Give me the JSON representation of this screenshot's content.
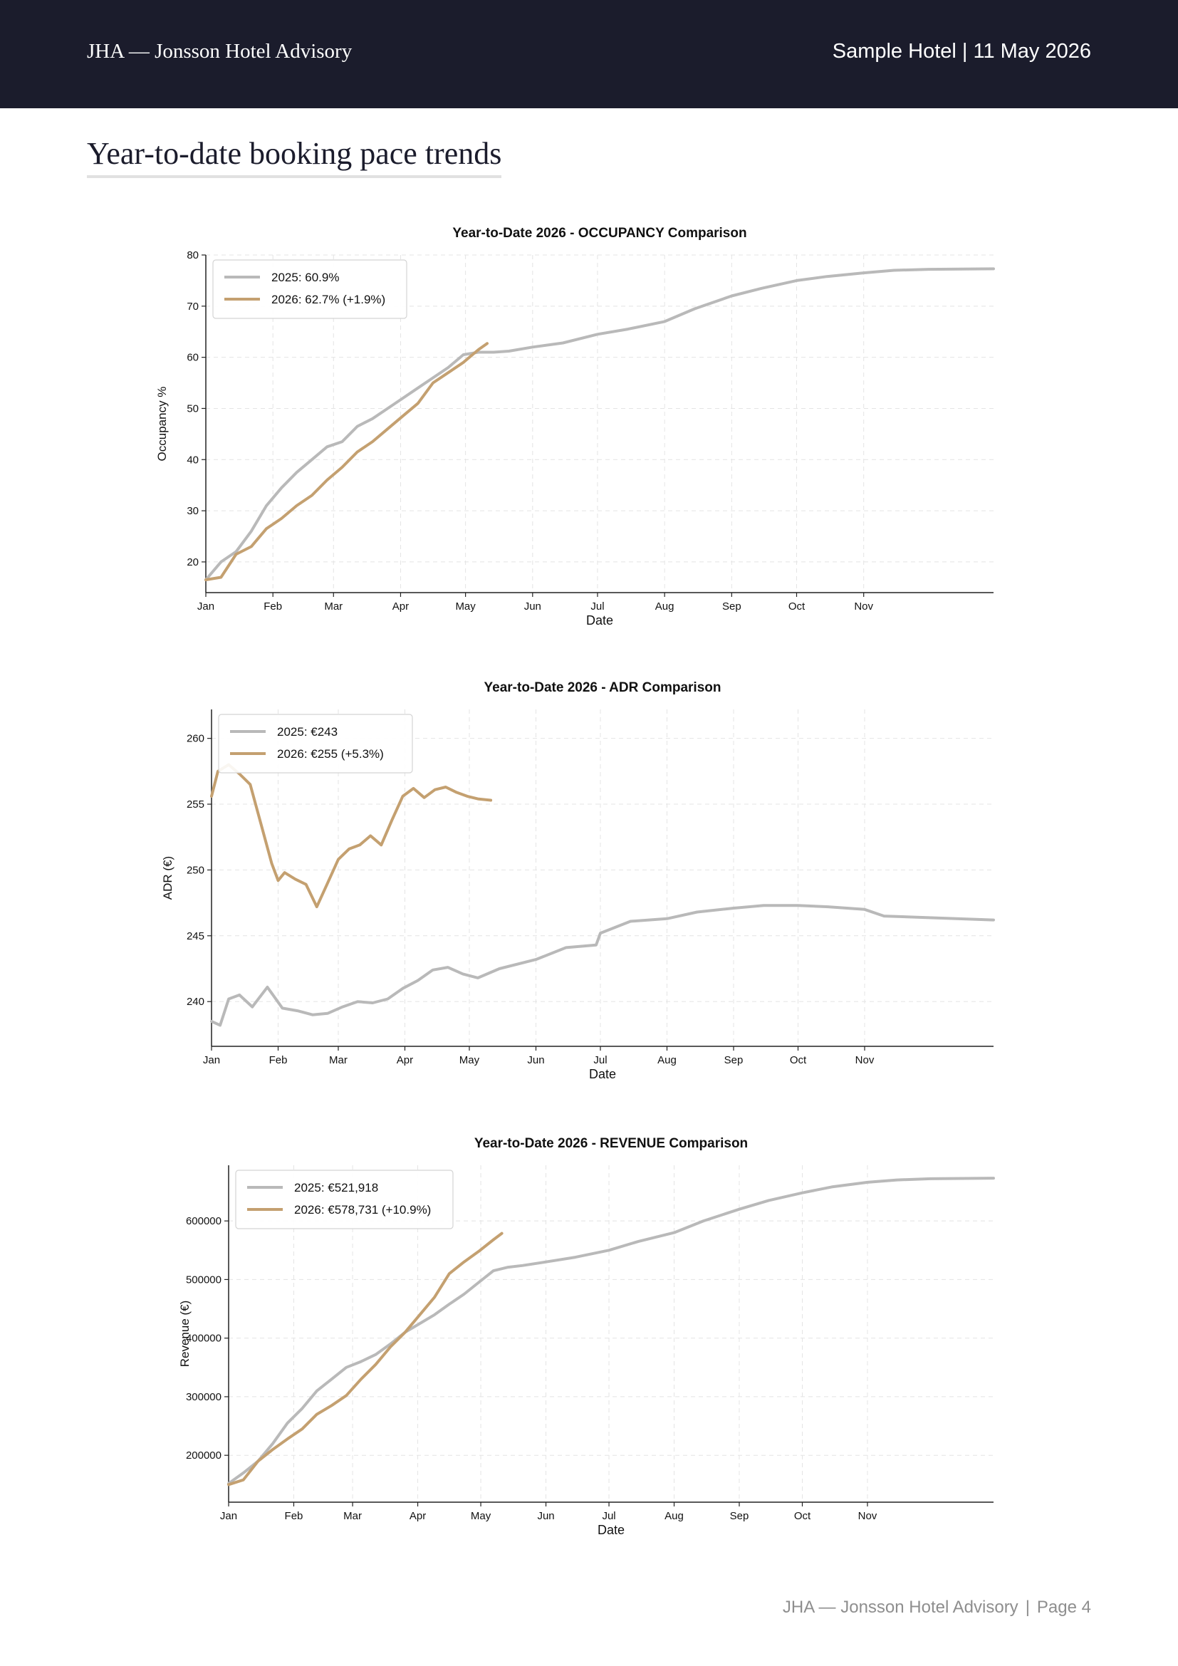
{
  "header": {
    "brand": "JHA — Jonsson Hotel Advisory",
    "hotel_date": "Sample Hotel | 11 May 2026"
  },
  "page": {
    "title": "Year-to-date booking pace trends"
  },
  "footer": {
    "brand": "JHA — Jonsson Hotel Advisory",
    "separator": "|",
    "page": "Page 4"
  },
  "colors": {
    "header_bg": "#1b1c2c",
    "series_2025": "#b9b9b9",
    "series_2026": "#c4a070",
    "grid": "#e4e4e4"
  },
  "chart_data": [
    {
      "type": "line",
      "title": "Year-to-Date 2026 - OCCUPANCY Comparison",
      "xlabel": "Date",
      "ylabel": "Occupancy %",
      "xlim": [
        "2026-01-01",
        "2026-12-31"
      ],
      "ylim": [
        14,
        80
      ],
      "x_ticks": [
        "Jan",
        "Feb",
        "Mar",
        "Apr",
        "May",
        "Jun",
        "Jul",
        "Aug",
        "Sep",
        "Oct",
        "Nov"
      ],
      "y_ticks": [
        20,
        30,
        40,
        50,
        60,
        70,
        80
      ],
      "grid": true,
      "legend": "top-left",
      "series": [
        {
          "name": "2025: 60.9%",
          "color": "#b9b9b9",
          "x": [
            "2026-01-01",
            "2026-01-08",
            "2026-01-15",
            "2026-01-22",
            "2026-01-29",
            "2026-02-05",
            "2026-02-12",
            "2026-02-19",
            "2026-02-26",
            "2026-03-05",
            "2026-03-12",
            "2026-03-19",
            "2026-03-26",
            "2026-04-02",
            "2026-04-09",
            "2026-04-16",
            "2026-04-23",
            "2026-04-30",
            "2026-05-07",
            "2026-05-14",
            "2026-05-21",
            "2026-06-01",
            "2026-06-15",
            "2026-07-01",
            "2026-07-15",
            "2026-08-01",
            "2026-08-15",
            "2026-09-01",
            "2026-09-15",
            "2026-10-01",
            "2026-10-15",
            "2026-11-01",
            "2026-11-15",
            "2026-12-01",
            "2026-12-31"
          ],
          "values": [
            16.5,
            20,
            22,
            26,
            31,
            34.5,
            37.5,
            40,
            42.5,
            43.5,
            46.5,
            48,
            50,
            52,
            54,
            56,
            58,
            60.5,
            61,
            61,
            61.2,
            62,
            62.8,
            64.5,
            65.5,
            67,
            69.5,
            72,
            73.5,
            75,
            75.8,
            76.5,
            77,
            77.2,
            77.3
          ]
        },
        {
          "name": "2026: 62.7% (+1.9%)",
          "color": "#c4a070",
          "x": [
            "2026-01-01",
            "2026-01-08",
            "2026-01-15",
            "2026-01-22",
            "2026-01-29",
            "2026-02-05",
            "2026-02-12",
            "2026-02-19",
            "2026-02-26",
            "2026-03-05",
            "2026-03-12",
            "2026-03-19",
            "2026-03-26",
            "2026-04-02",
            "2026-04-09",
            "2026-04-16",
            "2026-04-23",
            "2026-04-30",
            "2026-05-07",
            "2026-05-11"
          ],
          "values": [
            16.5,
            17,
            21.5,
            23,
            26.5,
            28.5,
            31,
            33,
            36,
            38.5,
            41.5,
            43.5,
            46,
            48.5,
            51,
            55,
            57,
            59,
            61.5,
            62.7
          ]
        }
      ]
    },
    {
      "type": "line",
      "title": "Year-to-Date 2026 - ADR Comparison",
      "xlabel": "Date",
      "ylabel": "ADR (€)",
      "xlim": [
        "2026-01-01",
        "2026-12-31"
      ],
      "ylim": [
        236.6,
        262.2
      ],
      "x_ticks": [
        "Jan",
        "Feb",
        "Mar",
        "Apr",
        "May",
        "Jun",
        "Jul",
        "Aug",
        "Sep",
        "Oct",
        "Nov"
      ],
      "y_ticks": [
        240,
        245,
        250,
        255,
        260
      ],
      "grid": true,
      "legend": "top-left",
      "series": [
        {
          "name": "2025: €243",
          "color": "#b9b9b9",
          "x": [
            "2026-01-01",
            "2026-01-05",
            "2026-01-09",
            "2026-01-14",
            "2026-01-20",
            "2026-01-27",
            "2026-02-03",
            "2026-02-10",
            "2026-02-17",
            "2026-02-24",
            "2026-03-03",
            "2026-03-10",
            "2026-03-17",
            "2026-03-24",
            "2026-03-31",
            "2026-04-07",
            "2026-04-14",
            "2026-04-21",
            "2026-04-28",
            "2026-05-05",
            "2026-05-15",
            "2026-06-01",
            "2026-06-15",
            "2026-06-29",
            "2026-07-01",
            "2026-07-15",
            "2026-08-01",
            "2026-08-15",
            "2026-09-01",
            "2026-09-15",
            "2026-10-01",
            "2026-10-15",
            "2026-11-01",
            "2026-11-10",
            "2026-12-31"
          ],
          "values": [
            238.5,
            238.2,
            240.2,
            240.5,
            239.6,
            241.1,
            239.5,
            239.3,
            239.0,
            239.1,
            239.6,
            240.0,
            239.9,
            240.2,
            241,
            241.6,
            242.4,
            242.6,
            242.1,
            241.8,
            242.5,
            243.2,
            244.1,
            244.3,
            245.2,
            246.1,
            246.3,
            246.8,
            247.1,
            247.3,
            247.3,
            247.2,
            247.0,
            246.5,
            246.2
          ]
        },
        {
          "name": "2026: €255 (+5.3%)",
          "color": "#c4a070",
          "x": [
            "2026-01-01",
            "2026-01-04",
            "2026-01-09",
            "2026-01-14",
            "2026-01-19",
            "2026-01-24",
            "2026-01-29",
            "2026-02-01",
            "2026-02-04",
            "2026-02-09",
            "2026-02-14",
            "2026-02-19",
            "2026-02-24",
            "2026-03-01",
            "2026-03-06",
            "2026-03-11",
            "2026-03-16",
            "2026-03-21",
            "2026-03-26",
            "2026-03-31",
            "2026-04-05",
            "2026-04-10",
            "2026-04-15",
            "2026-04-20",
            "2026-04-25",
            "2026-04-30",
            "2026-05-05",
            "2026-05-11"
          ],
          "values": [
            255.6,
            257.5,
            258.0,
            257.3,
            256.5,
            253.5,
            250.5,
            249.2,
            249.8,
            249.3,
            248.9,
            247.2,
            249.0,
            250.8,
            251.6,
            251.9,
            252.6,
            251.9,
            253.8,
            255.6,
            256.2,
            255.5,
            256.1,
            256.3,
            255.9,
            255.6,
            255.4,
            255.3
          ]
        }
      ]
    },
    {
      "type": "line",
      "title": "Year-to-Date 2026 - REVENUE Comparison",
      "xlabel": "Date",
      "ylabel": "Revenue (€)",
      "xlim": [
        "2026-01-01",
        "2026-12-31"
      ],
      "ylim": [
        120000,
        695000
      ],
      "x_ticks": [
        "Jan",
        "Feb",
        "Mar",
        "Apr",
        "May",
        "Jun",
        "Jul",
        "Aug",
        "Sep",
        "Oct",
        "Nov"
      ],
      "y_ticks": [
        200000,
        300000,
        400000,
        500000,
        600000
      ],
      "grid": true,
      "legend": "top-left",
      "series": [
        {
          "name": "2025: €521,918",
          "color": "#b9b9b9",
          "x": [
            "2026-01-01",
            "2026-01-08",
            "2026-01-15",
            "2026-01-22",
            "2026-01-29",
            "2026-02-05",
            "2026-02-12",
            "2026-02-19",
            "2026-02-26",
            "2026-03-05",
            "2026-03-12",
            "2026-03-19",
            "2026-03-26",
            "2026-04-02",
            "2026-04-09",
            "2026-04-16",
            "2026-04-23",
            "2026-04-30",
            "2026-05-07",
            "2026-05-14",
            "2026-05-21",
            "2026-06-01",
            "2026-06-15",
            "2026-07-01",
            "2026-07-15",
            "2026-08-01",
            "2026-08-15",
            "2026-09-01",
            "2026-09-15",
            "2026-10-01",
            "2026-10-15",
            "2026-11-01",
            "2026-11-15",
            "2026-12-01",
            "2026-12-31"
          ],
          "values": [
            152000,
            170000,
            190000,
            220000,
            255000,
            280000,
            310000,
            330000,
            350000,
            360000,
            372000,
            390000,
            410000,
            425000,
            440000,
            458000,
            475000,
            495000,
            515000,
            521000,
            524000,
            530000,
            538000,
            550000,
            565000,
            580000,
            600000,
            620000,
            635000,
            648000,
            658000,
            666000,
            670000,
            672000,
            673000
          ]
        },
        {
          "name": "2026: €578,731 (+10.9%)",
          "color": "#c4a070",
          "x": [
            "2026-01-01",
            "2026-01-08",
            "2026-01-15",
            "2026-01-22",
            "2026-01-29",
            "2026-02-05",
            "2026-02-12",
            "2026-02-19",
            "2026-02-26",
            "2026-03-05",
            "2026-03-12",
            "2026-03-19",
            "2026-03-26",
            "2026-04-02",
            "2026-04-09",
            "2026-04-16",
            "2026-04-23",
            "2026-04-30",
            "2026-05-07",
            "2026-05-11"
          ],
          "values": [
            150000,
            158000,
            190000,
            210000,
            228000,
            245000,
            270000,
            285000,
            302000,
            330000,
            355000,
            385000,
            410000,
            440000,
            470000,
            510000,
            530000,
            548000,
            568000,
            578731
          ]
        }
      ]
    }
  ]
}
